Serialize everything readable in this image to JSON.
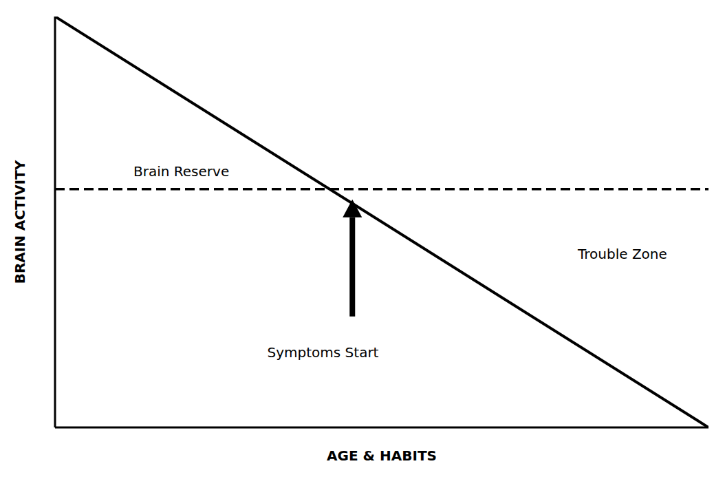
{
  "chart_data": {
    "type": "line",
    "x": [
      0,
      1
    ],
    "series": [
      {
        "values": [
          1,
          0
        ],
        "color": "#000000",
        "line_style": "solid"
      },
      {
        "values": [
          0.58,
          0.58
        ],
        "color": "#000000",
        "line_style": "dashed"
      }
    ],
    "xlabel": "AGE & HABITS",
    "ylabel": "BRAIN ACTIVITY",
    "annotations": [
      "Brain Reserve",
      "Symptoms Start",
      "Trouble Zone"
    ],
    "xlim": [
      0,
      1
    ],
    "ylim": [
      0,
      1
    ],
    "xticks": [],
    "yticks": [],
    "tick_labels": false,
    "grid": false
  }
}
